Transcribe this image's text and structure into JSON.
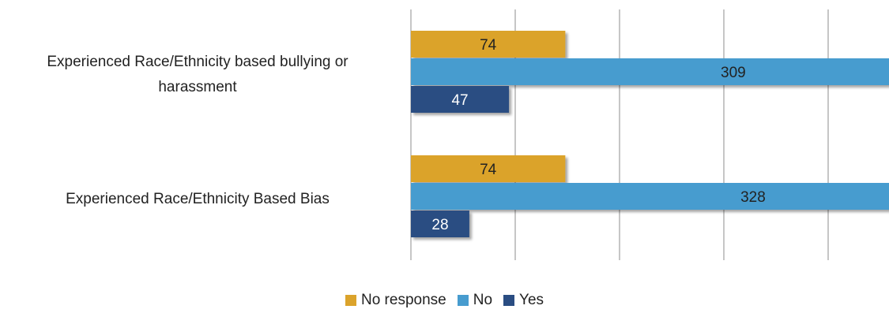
{
  "chart_data": {
    "type": "bar",
    "orientation": "horizontal",
    "categories": [
      "Experienced Race/Ethnicity based bullying or harassment",
      "Experienced Race/Ethnicity Based Bias"
    ],
    "series": [
      {
        "name": "No response",
        "values": [
          74,
          74
        ],
        "color": "#dba32b"
      },
      {
        "name": "No",
        "values": [
          309,
          328
        ],
        "color": "#479ccf"
      },
      {
        "name": "Yes",
        "values": [
          47,
          28
        ],
        "color": "#2a4d82"
      }
    ],
    "xlim": [
      0,
      350
    ],
    "x_gridline_step": 50,
    "grid": true,
    "data_labels": true,
    "legend_position": "bottom",
    "title": "",
    "xlabel": "",
    "ylabel": ""
  }
}
